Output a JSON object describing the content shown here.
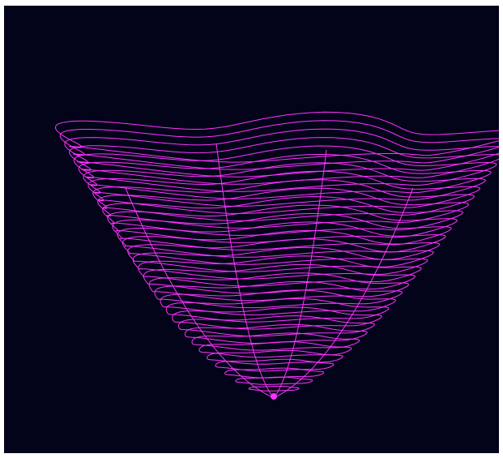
{
  "scene": {
    "background_color": "#03041a",
    "wire_color": "#ff33ff",
    "ring_count": 34,
    "petal_count": 5
  }
}
